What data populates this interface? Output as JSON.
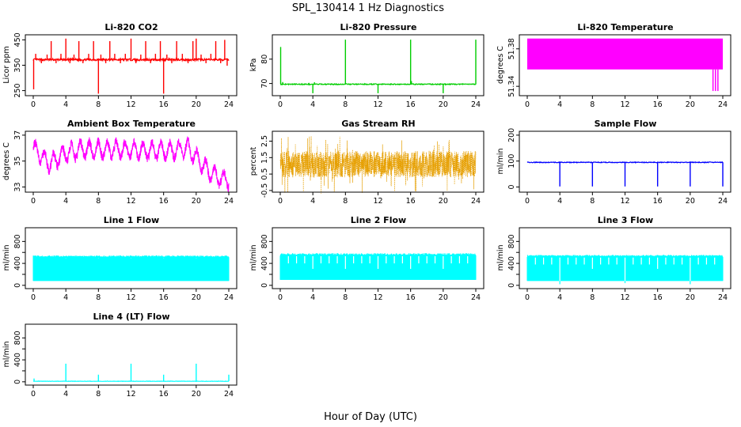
{
  "figure": {
    "title": "SPL_130414  1 Hz Diagnostics",
    "xlabel": "Hour of Day (UTC)",
    "x_ticks": [
      "0",
      "4",
      "8",
      "12",
      "16",
      "20",
      "24"
    ]
  },
  "colors": {
    "red": "#ff0000",
    "green": "#00cd00",
    "magenta": "#ff00ff",
    "orange": "#e69f00",
    "blue": "#0000ff",
    "cyan": "#00ffff"
  },
  "chart_data": [
    {
      "id": "co2",
      "type": "line",
      "title": "Li-820 CO2",
      "ylabel": "Licor ppm",
      "color": "red",
      "xlim": [
        0,
        24
      ],
      "ylim": [
        230,
        470
      ],
      "y_ticks": [
        250,
        350,
        450
      ],
      "y_tick_labels": [
        "250",
        "350",
        "450"
      ],
      "baseline": 372,
      "noise": 4,
      "waves": [],
      "spikes": [
        {
          "x": 0.05,
          "y": 255
        },
        {
          "x": 0.3,
          "y": 395
        },
        {
          "x": 1.0,
          "y": 358
        },
        {
          "x": 1.7,
          "y": 392
        },
        {
          "x": 2.2,
          "y": 445
        },
        {
          "x": 2.8,
          "y": 358
        },
        {
          "x": 3.4,
          "y": 395
        },
        {
          "x": 4.0,
          "y": 455
        },
        {
          "x": 4.5,
          "y": 358
        },
        {
          "x": 5.0,
          "y": 392
        },
        {
          "x": 5.6,
          "y": 445
        },
        {
          "x": 6.1,
          "y": 358
        },
        {
          "x": 6.8,
          "y": 395
        },
        {
          "x": 7.4,
          "y": 445
        },
        {
          "x": 8.0,
          "y": 238
        },
        {
          "x": 8.3,
          "y": 392
        },
        {
          "x": 8.9,
          "y": 358
        },
        {
          "x": 9.4,
          "y": 445
        },
        {
          "x": 10.0,
          "y": 395
        },
        {
          "x": 10.7,
          "y": 358
        },
        {
          "x": 11.3,
          "y": 395
        },
        {
          "x": 12.0,
          "y": 455
        },
        {
          "x": 12.6,
          "y": 358
        },
        {
          "x": 13.2,
          "y": 392
        },
        {
          "x": 13.8,
          "y": 445
        },
        {
          "x": 14.4,
          "y": 358
        },
        {
          "x": 15.0,
          "y": 395
        },
        {
          "x": 15.6,
          "y": 445
        },
        {
          "x": 16.0,
          "y": 238
        },
        {
          "x": 16.4,
          "y": 392
        },
        {
          "x": 17.0,
          "y": 358
        },
        {
          "x": 17.6,
          "y": 445
        },
        {
          "x": 18.3,
          "y": 395
        },
        {
          "x": 19.0,
          "y": 358
        },
        {
          "x": 19.6,
          "y": 445
        },
        {
          "x": 20.0,
          "y": 455
        },
        {
          "x": 20.6,
          "y": 392
        },
        {
          "x": 21.2,
          "y": 358
        },
        {
          "x": 21.8,
          "y": 395
        },
        {
          "x": 22.4,
          "y": 445
        },
        {
          "x": 23.0,
          "y": 358
        },
        {
          "x": 23.5,
          "y": 450
        },
        {
          "x": 23.8,
          "y": 348
        }
      ]
    },
    {
      "id": "pressure",
      "type": "line",
      "title": "Li-820 Pressure",
      "ylabel": "kPa",
      "color": "green",
      "xlim": [
        0,
        24
      ],
      "ylim": [
        65,
        90
      ],
      "y_ticks": [
        70,
        80
      ],
      "y_tick_labels": [
        "70",
        "80"
      ],
      "baseline": 69.7,
      "noise": 0.2,
      "waves": [],
      "spikes": [
        {
          "x": 0.05,
          "y": 85
        },
        {
          "x": 0.3,
          "y": 70.6
        },
        {
          "x": 4.0,
          "y": 66
        },
        {
          "x": 4.2,
          "y": 70.5
        },
        {
          "x": 8.0,
          "y": 88
        },
        {
          "x": 12.0,
          "y": 66
        },
        {
          "x": 16.0,
          "y": 88
        },
        {
          "x": 16.1,
          "y": 71
        },
        {
          "x": 20.0,
          "y": 66
        },
        {
          "x": 24.0,
          "y": 88
        }
      ]
    },
    {
      "id": "temperature",
      "type": "line",
      "title": "Li-820 Temperature",
      "ylabel": "degrees C",
      "color": "magenta",
      "xlim": [
        0,
        24
      ],
      "ylim": [
        51.33,
        51.395
      ],
      "y_ticks": [
        51.34,
        51.38
      ],
      "y_tick_labels": [
        "51.34",
        "51.38"
      ],
      "band": [
        51.358,
        51.391
      ],
      "drops": [
        {
          "x": 22.8,
          "y": 51.335
        },
        {
          "x": 23.1,
          "y": 51.335
        },
        {
          "x": 23.4,
          "y": 51.335
        }
      ]
    },
    {
      "id": "ambient",
      "type": "line",
      "title": "Ambient Box Temperature",
      "ylabel": "degrees C",
      "color": "magenta",
      "xlim": [
        0,
        24
      ],
      "ylim": [
        32.6,
        37.3
      ],
      "y_ticks": [
        33,
        35,
        37
      ],
      "y_tick_labels": [
        "33",
        "35",
        "37"
      ],
      "trend": [
        {
          "x": 0,
          "y": 36.0
        },
        {
          "x": 2,
          "y": 34.8
        },
        {
          "x": 4,
          "y": 35.6
        },
        {
          "x": 6,
          "y": 35.9
        },
        {
          "x": 10,
          "y": 35.9
        },
        {
          "x": 14,
          "y": 35.8
        },
        {
          "x": 17,
          "y": 35.8
        },
        {
          "x": 19,
          "y": 36.0
        },
        {
          "x": 20,
          "y": 35.3
        },
        {
          "x": 21.5,
          "y": 34.2
        },
        {
          "x": 22.5,
          "y": 33.8
        },
        {
          "x": 24,
          "y": 33.5
        }
      ],
      "cycle_amplitude": 0.6,
      "cycle_period_h": 1.1,
      "noise": 0.35
    },
    {
      "id": "rh",
      "type": "scatter",
      "title": "Gas Stream RH",
      "ylabel": "percent",
      "color": "orange",
      "xlim": [
        0,
        24
      ],
      "ylim": [
        -0.6,
        3.1
      ],
      "y_ticks": [
        -0.5,
        0.5,
        1.5,
        2.5
      ],
      "y_tick_labels": [
        "-0.5",
        "0.5",
        "1.5",
        "2.5"
      ],
      "center": 1.1,
      "spread": 0.8,
      "max_excursion": 1.8
    },
    {
      "id": "sample_flow",
      "type": "line",
      "title": "Sample Flow",
      "ylabel": "ml/min",
      "color": "blue",
      "xlim": [
        0,
        24
      ],
      "ylim": [
        -20,
        215
      ],
      "y_ticks": [
        0,
        100,
        200
      ],
      "y_tick_labels": [
        "0",
        "100",
        "200"
      ],
      "baseline": 95,
      "noise": 1.5,
      "waves": [],
      "spikes": [
        {
          "x": 4.0,
          "y": 2
        },
        {
          "x": 8.0,
          "y": 2
        },
        {
          "x": 12.0,
          "y": 2
        },
        {
          "x": 16.0,
          "y": 2
        },
        {
          "x": 20.0,
          "y": 2
        },
        {
          "x": 24.0,
          "y": 2
        }
      ]
    },
    {
      "id": "line1",
      "type": "line",
      "title": "Line 1 Flow",
      "ylabel": "ml/min",
      "color": "cyan",
      "xlim": [
        0,
        24
      ],
      "ylim": [
        -60,
        1050
      ],
      "y_ticks": [
        0,
        200,
        400,
        600,
        800
      ],
      "y_tick_labels": [
        "0",
        "400",
        "800"
      ],
      "y_labeled": [
        0,
        400,
        800
      ],
      "band_low": 80,
      "band_high": 525,
      "high_var": 20,
      "gaps": [
        {
          "x": 4.0,
          "y": 500
        },
        {
          "x": 8.0,
          "y": 500
        },
        {
          "x": 12.0,
          "y": 500
        },
        {
          "x": 16.0,
          "y": 500
        },
        {
          "x": 20.0,
          "y": 500
        }
      ]
    },
    {
      "id": "line2",
      "type": "line",
      "title": "Line 2 Flow",
      "ylabel": "ml/min",
      "color": "cyan",
      "xlim": [
        0,
        24
      ],
      "ylim": [
        -60,
        1050
      ],
      "y_ticks": [
        0,
        200,
        400,
        600,
        800
      ],
      "y_tick_labels": [
        "0",
        "400",
        "800"
      ],
      "y_labeled": [
        0,
        400,
        800
      ],
      "band_low": 100,
      "band_high": 560,
      "high_var": 25,
      "gaps": [
        {
          "x": 1.0,
          "y": 400
        },
        {
          "x": 2.0,
          "y": 400
        },
        {
          "x": 3.0,
          "y": 400
        },
        {
          "x": 4.0,
          "y": 300
        },
        {
          "x": 5.0,
          "y": 400
        },
        {
          "x": 6.0,
          "y": 400
        },
        {
          "x": 7.0,
          "y": 400
        },
        {
          "x": 8.0,
          "y": 300
        },
        {
          "x": 9.0,
          "y": 400
        },
        {
          "x": 10.0,
          "y": 400
        },
        {
          "x": 11.0,
          "y": 400
        },
        {
          "x": 12.0,
          "y": 300
        },
        {
          "x": 13.0,
          "y": 400
        },
        {
          "x": 14.0,
          "y": 400
        },
        {
          "x": 15.0,
          "y": 400
        },
        {
          "x": 16.0,
          "y": 300
        },
        {
          "x": 17.0,
          "y": 400
        },
        {
          "x": 18.0,
          "y": 400
        },
        {
          "x": 19.0,
          "y": 400
        },
        {
          "x": 20.0,
          "y": 300
        },
        {
          "x": 21.0,
          "y": 400
        },
        {
          "x": 22.0,
          "y": 400
        },
        {
          "x": 23.0,
          "y": 400
        }
      ]
    },
    {
      "id": "line3",
      "type": "line",
      "title": "Line 3 Flow",
      "ylabel": "ml/min",
      "color": "cyan",
      "xlim": [
        0,
        24
      ],
      "ylim": [
        -60,
        1050
      ],
      "y_ticks": [
        0,
        200,
        400,
        600,
        800
      ],
      "y_tick_labels": [
        "0",
        "400",
        "800"
      ],
      "y_labeled": [
        0,
        400,
        800
      ],
      "band_low": 80,
      "band_high": 535,
      "high_var": 20,
      "gaps": [
        {
          "x": 1.0,
          "y": 380
        },
        {
          "x": 2.0,
          "y": 380
        },
        {
          "x": 3.0,
          "y": 380
        },
        {
          "x": 4.0,
          "y": 20
        },
        {
          "x": 5.0,
          "y": 380
        },
        {
          "x": 6.0,
          "y": 380
        },
        {
          "x": 7.0,
          "y": 380
        },
        {
          "x": 8.0,
          "y": 300
        },
        {
          "x": 9.0,
          "y": 380
        },
        {
          "x": 10.0,
          "y": 380
        },
        {
          "x": 11.0,
          "y": 380
        },
        {
          "x": 12.0,
          "y": 40
        },
        {
          "x": 13.0,
          "y": 380
        },
        {
          "x": 14.0,
          "y": 380
        },
        {
          "x": 15.0,
          "y": 380
        },
        {
          "x": 16.0,
          "y": 300
        },
        {
          "x": 17.0,
          "y": 380
        },
        {
          "x": 18.0,
          "y": 380
        },
        {
          "x": 19.0,
          "y": 380
        },
        {
          "x": 20.0,
          "y": 20
        },
        {
          "x": 21.0,
          "y": 380
        },
        {
          "x": 22.0,
          "y": 380
        },
        {
          "x": 23.0,
          "y": 380
        }
      ]
    },
    {
      "id": "line4",
      "type": "line",
      "title": "Line 4 (LT) Flow",
      "ylabel": "ml/min",
      "color": "cyan",
      "xlim": [
        0,
        24
      ],
      "ylim": [
        -60,
        1050
      ],
      "y_ticks": [
        0,
        200,
        400,
        600,
        800
      ],
      "y_tick_labels": [
        "0",
        "400",
        "800"
      ],
      "y_labeled": [
        0,
        400,
        800
      ],
      "baseline": 10,
      "noise": 3,
      "waves": [],
      "spikes": [
        {
          "x": 0.1,
          "y": 60
        },
        {
          "x": 4.0,
          "y": 330
        },
        {
          "x": 8.0,
          "y": 130
        },
        {
          "x": 12.0,
          "y": 330
        },
        {
          "x": 16.0,
          "y": 130
        },
        {
          "x": 20.0,
          "y": 330
        },
        {
          "x": 24.0,
          "y": 130
        }
      ]
    }
  ]
}
